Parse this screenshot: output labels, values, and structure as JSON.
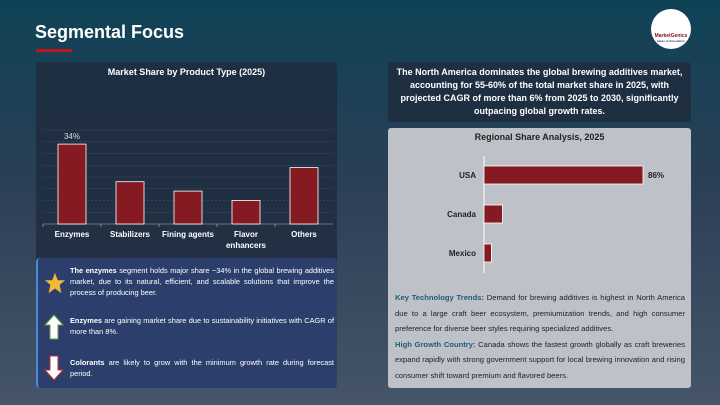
{
  "header": {
    "title": "Segmental Focus",
    "logo_text": "MarketGenics",
    "logo_tagline": "Ideas to Innovation"
  },
  "chart_data": [
    {
      "type": "bar",
      "title": "Market Share by Product Type (2025)",
      "categories": [
        "Enzymes",
        "Stabilizers",
        "Fining agents",
        "Flavor enhancers",
        "Others"
      ],
      "values": [
        34,
        18,
        14,
        10,
        24
      ],
      "data_labels": [
        "34%",
        "",
        "",
        "",
        ""
      ],
      "ylim": [
        0,
        40
      ],
      "grid": true,
      "bar_color": "#861a22"
    },
    {
      "type": "bar",
      "orientation": "horizontal",
      "title": "Regional Share Analysis, 2025",
      "categories": [
        "USA",
        "Canada",
        "Mexico"
      ],
      "values": [
        86,
        10,
        4
      ],
      "data_labels": [
        "86%",
        "",
        ""
      ],
      "bar_color": "#861a22"
    }
  ],
  "summary": "The North America dominates the global brewing additives market, accounting for 55-60% of the total market share in 2025, with projected CAGR of more than 6% from 2025 to 2030, significantly outpacing global growth rates.",
  "trends": {
    "k1": "Key Technology Trends:",
    "t1": " Demand for brewing additives is highest in North America due to a large craft beer ecosystem, premiumization trends, and high consumer preference for diverse beer styles requiring specialized additives.",
    "k2": "High Growth Country:",
    "t2": " Canada shows the fastest growth globally as craft breweries expand rapidly with strong government support for local brewing innovation and rising consumer shift toward premium and flavored beers."
  },
  "insights": [
    {
      "icon": "star-icon",
      "bold": "The enzymes",
      "text": " segment holds major share ~34% in the global brewing additives market, due to its natural, efficient, and scalable solutions that improve the process of producing beer."
    },
    {
      "icon": "arrow-up-icon",
      "bold": "Enzymes",
      "text": " are gaining market share due to sustainability initiatives with CAGR of more than 8%."
    },
    {
      "icon": "arrow-down-icon",
      "bold": "Colorants",
      "text": " are likely to grow with the minimum growth rate during forecast period."
    }
  ]
}
